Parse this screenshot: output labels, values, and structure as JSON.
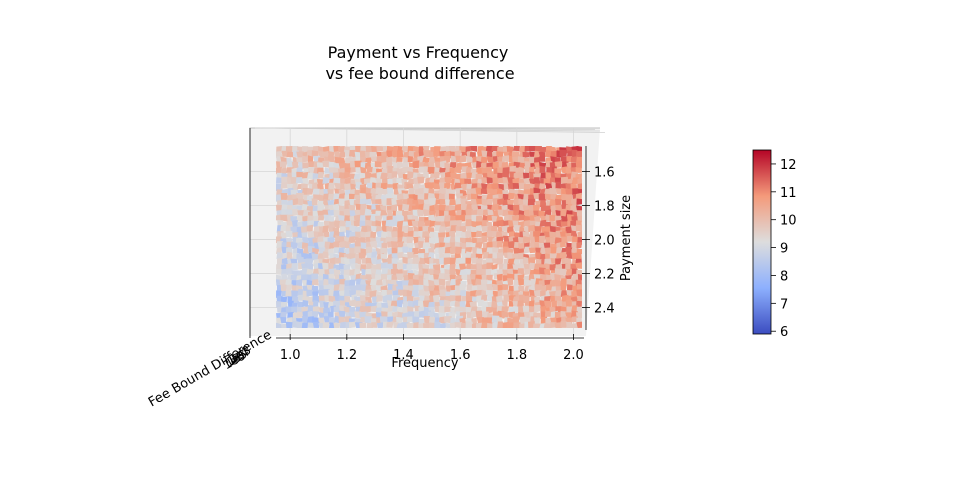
{
  "chart_data": {
    "type": "heatmap",
    "title": "Payment vs Frequency\nvs fee bound difference",
    "xlabel": "Frequency",
    "ylabel": "Payment size",
    "zlabel": "Fee Bound Difference",
    "z_tick_labels": [
      "1e6",
      "1e5",
      "1e4",
      "1e3"
    ],
    "x_ticks": [
      1.0,
      1.2,
      1.4,
      1.6,
      1.8,
      2.0
    ],
    "x_tick_labels": [
      "1.0",
      "1.2",
      "1.4",
      "1.6",
      "1.8",
      "2.0"
    ],
    "xlim": [
      0.95,
      2.03
    ],
    "y_ticks": [
      1.6,
      1.8,
      2.0,
      2.2,
      2.4
    ],
    "y_tick_labels": [
      "1.6",
      "1.8",
      "2.0",
      "2.2",
      "2.4"
    ],
    "ylim": [
      1.45,
      2.52
    ],
    "colorbar": {
      "ticks": [
        6,
        7,
        8,
        9,
        10,
        11,
        12
      ],
      "tick_labels": [
        "6",
        "7",
        "8",
        "9",
        "10",
        "11",
        "12"
      ],
      "range": [
        5.9,
        12.5
      ],
      "colormap": "coolwarm"
    },
    "colors": {
      "low": "#3b4cc0",
      "mid": "#dddddd",
      "high": "#b40426",
      "pane": "#f2f2f2"
    },
    "surface_trend": {
      "description_values": "value rises with Frequency and falls with Payment size",
      "corner_values": {
        "freq_1.0_pay_1.6": 9.6,
        "freq_2.0_pay_1.6": 11.3,
        "freq_1.0_pay_2.4": 8.4,
        "freq_2.0_pay_2.4": 10.3
      },
      "noise": 0.9
    }
  }
}
